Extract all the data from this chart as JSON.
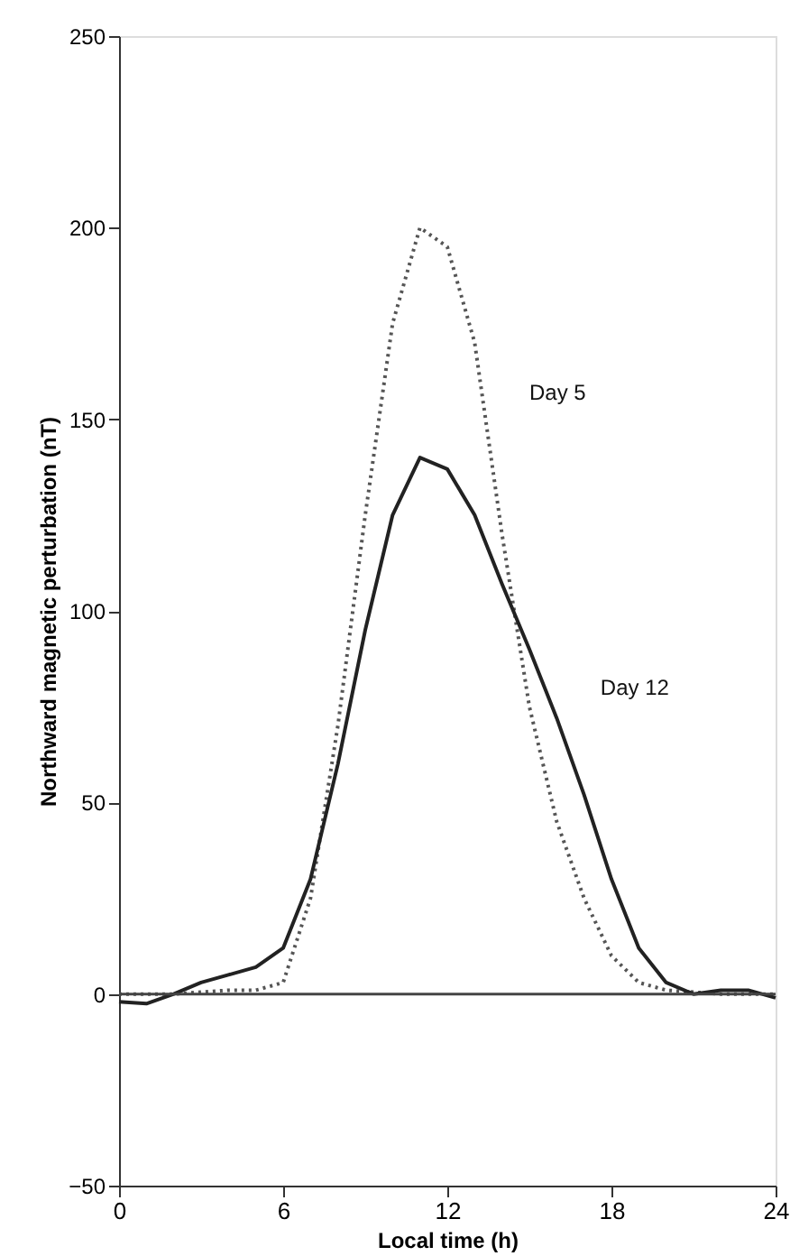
{
  "chart_data": {
    "type": "line",
    "xlabel": "Local time (h)",
    "ylabel": "Northward magnetic perturbation (nT)",
    "x": [
      0,
      1,
      2,
      3,
      4,
      5,
      6,
      7,
      8,
      9,
      10,
      11,
      12,
      13,
      14,
      15,
      16,
      17,
      18,
      19,
      20,
      21,
      22,
      23,
      24
    ],
    "series": [
      {
        "name": "Day 5",
        "color": "#555555",
        "line_style": "dotted",
        "values": [
          0,
          0,
          0,
          0.5,
          1,
          1,
          3,
          25,
          70,
          125,
          175,
          200,
          195,
          170,
          120,
          75,
          45,
          25,
          10,
          3,
          1,
          0.5,
          0,
          0,
          0
        ]
      },
      {
        "name": "Day 12",
        "color": "#222222",
        "line_style": "solid",
        "values": [
          -2,
          -2.5,
          0,
          3,
          5,
          7,
          12,
          30,
          60,
          95,
          125,
          140,
          137,
          125,
          107,
          90,
          72,
          52,
          30,
          12,
          3,
          0,
          1,
          1,
          -1
        ]
      }
    ],
    "xlim": [
      0,
      24
    ],
    "xticks": [
      0,
      6,
      12,
      18,
      24
    ],
    "ylim": [
      -50,
      250
    ],
    "yticks": [
      -50,
      0,
      50,
      100,
      150,
      200,
      250
    ],
    "ref_lines": [
      {
        "axis": "y",
        "value": 0,
        "color": "#444444",
        "line_style": "solid"
      }
    ],
    "grid": false,
    "legend": false,
    "marker": "none"
  }
}
